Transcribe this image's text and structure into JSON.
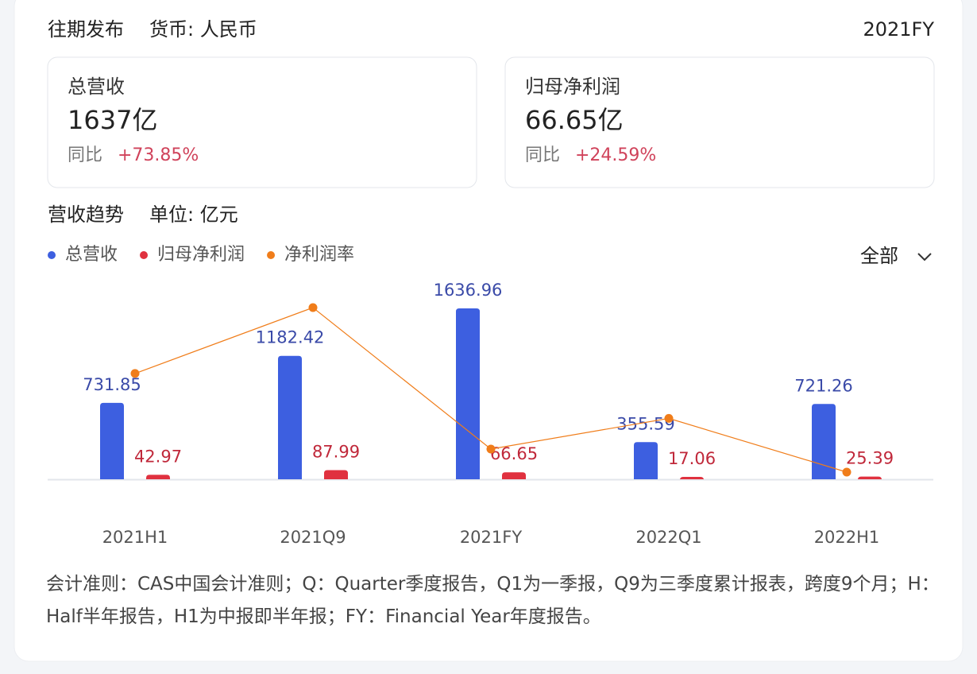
{
  "header": {
    "title": "往期发布",
    "currency": "货币: 人民币",
    "period": "2021FY"
  },
  "cards": [
    {
      "label": "总营收",
      "value": "1637亿",
      "yoy_label": "同比",
      "yoy": "+73.85%"
    },
    {
      "label": "归母净利润",
      "value": "66.65亿",
      "yoy_label": "同比",
      "yoy": "+24.59%"
    }
  ],
  "section": {
    "title": "营收趋势",
    "unit": "单位: 亿元",
    "filter": "全部"
  },
  "chart_data": {
    "type": "bar",
    "categories": [
      "2021H1",
      "2021Q9",
      "2021FY",
      "2022Q1",
      "2022H1"
    ],
    "series": [
      {
        "name": "总营收",
        "color": "#3d5fe0",
        "values": [
          731.85,
          1182.42,
          1636.96,
          355.59,
          721.26
        ]
      },
      {
        "name": "归母净利润",
        "color": "#e0313f",
        "values": [
          42.97,
          87.99,
          66.65,
          17.06,
          25.39
        ]
      },
      {
        "name": "净利润率",
        "type": "line",
        "color": "#f07d1a",
        "values": [
          5.87,
          7.44,
          4.07,
          4.8,
          3.52
        ]
      }
    ]
  },
  "footnote": "会计准则：CAS中国会计准则；Q：Quarter季度报告，Q1为一季报，Q9为三季度累计报表，跨度9个月；H：Half半年报告，H1为中报即半年报；FY：Financial Year年度报告。"
}
